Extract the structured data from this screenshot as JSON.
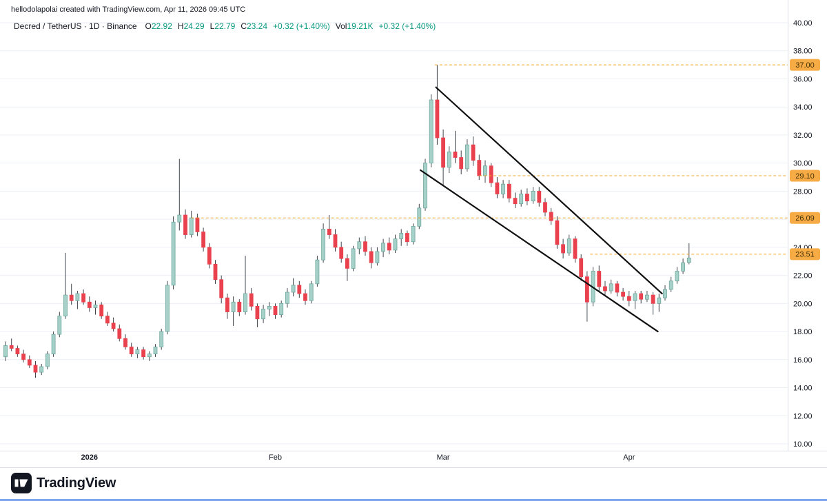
{
  "attribution": "hellodolapolai created with TradingView.com, Apr 11, 2026 09:45 UTC",
  "legend": {
    "title": "Decred / TetherUS · 1D · Binance",
    "ohlc": {
      "o_label": "O",
      "o": "22.92",
      "h_label": "H",
      "h": "24.29",
      "l_label": "L",
      "l": "22.79",
      "c_label": "C",
      "c": "23.24"
    },
    "change": "+0.32 (+1.40%)",
    "vol_label": "Vol",
    "vol_value": "19.21K",
    "vol_change": "+0.32 (+1.40%)"
  },
  "footer": {
    "brand": "TradingView"
  },
  "chart_data": {
    "type": "candlestick",
    "title": "Decred / TetherUS · 1D · Binance",
    "y_axis": {
      "min": 10,
      "max": 40,
      "step": 2,
      "side": "right",
      "labels": [
        "40.00",
        "38.00",
        "36.00",
        "34.00",
        "32.00",
        "30.00",
        "28.00",
        "26.00",
        "24.00",
        "22.00",
        "20.00",
        "18.00",
        "16.00",
        "14.00",
        "12.00",
        "10.00"
      ]
    },
    "x_axis": {
      "labels": [
        {
          "text": "2026",
          "index": 14,
          "bold": true
        },
        {
          "text": "Feb",
          "index": 45,
          "bold": false
        },
        {
          "text": "Mar",
          "index": 73,
          "bold": false
        },
        {
          "text": "Apr",
          "index": 104,
          "bold": false
        }
      ]
    },
    "price_levels": [
      {
        "label": "37.00",
        "price": 37.0,
        "start_index": 71.6
      },
      {
        "label": "29.10",
        "price": 29.1,
        "start_index": 79
      },
      {
        "label": "26.09",
        "price": 26.09,
        "start_index": 31
      },
      {
        "label": "23.51",
        "price": 23.51,
        "start_index": 97.5
      }
    ],
    "trendlines": [
      {
        "from_index": 71.8,
        "from_price": 35.4,
        "to_index": 109.5,
        "to_price": 20.7
      },
      {
        "from_index": 69.2,
        "from_price": 29.5,
        "to_index": 108.8,
        "to_price": 18.0
      }
    ],
    "colors": {
      "up_fill": "#a5d1c9",
      "up_border": "#6fa69d",
      "down_fill": "#e9414e",
      "down_border": "#e9414e",
      "wick": "#3f444c",
      "grid": "#eceff4",
      "axis_border": "#dde0e6",
      "axis_text": "#131722",
      "trendline": "#101010",
      "level_line": "#f5a623",
      "level_label_bg": "#f6ab44",
      "level_label_text": "#422f05"
    },
    "candles": [
      [
        "2025-12-18",
        16.2,
        17.3,
        15.9,
        17.0
      ],
      [
        "2025-12-19",
        17.0,
        17.5,
        16.6,
        16.8
      ],
      [
        "2025-12-20",
        16.8,
        17.0,
        16.2,
        16.4
      ],
      [
        "2025-12-21",
        16.4,
        16.7,
        15.8,
        16.0
      ],
      [
        "2025-12-22",
        16.0,
        16.3,
        15.4,
        15.6
      ],
      [
        "2025-12-23",
        15.6,
        15.9,
        14.7,
        15.1
      ],
      [
        "2025-12-24",
        15.1,
        15.7,
        14.9,
        15.5
      ],
      [
        "2025-12-25",
        15.5,
        16.6,
        15.3,
        16.4
      ],
      [
        "2025-12-26",
        16.4,
        18.0,
        16.2,
        17.8
      ],
      [
        "2025-12-27",
        17.8,
        19.4,
        17.6,
        19.1
      ],
      [
        "2025-12-28",
        19.1,
        23.6,
        18.9,
        20.6
      ],
      [
        "2025-12-29",
        20.6,
        21.4,
        19.9,
        20.2
      ],
      [
        "2025-12-30",
        20.2,
        20.9,
        19.6,
        20.7
      ],
      [
        "2025-12-31",
        20.7,
        21.0,
        19.9,
        20.1
      ],
      [
        "2026-01-01",
        20.1,
        20.5,
        19.4,
        19.7
      ],
      [
        "2026-01-02",
        19.7,
        20.2,
        19.2,
        19.9
      ],
      [
        "2026-01-03",
        19.9,
        20.1,
        18.9,
        19.1
      ],
      [
        "2026-01-04",
        19.1,
        19.4,
        18.4,
        18.6
      ],
      [
        "2026-01-05",
        18.6,
        19.0,
        18.0,
        18.2
      ],
      [
        "2026-01-06",
        18.2,
        18.5,
        17.3,
        17.5
      ],
      [
        "2026-01-07",
        17.5,
        17.8,
        16.7,
        16.9
      ],
      [
        "2026-01-08",
        16.9,
        17.2,
        16.2,
        16.4
      ],
      [
        "2026-01-09",
        16.4,
        16.9,
        16.1,
        16.7
      ],
      [
        "2026-01-10",
        16.7,
        16.9,
        16.0,
        16.2
      ],
      [
        "2026-01-11",
        16.2,
        16.6,
        15.9,
        16.4
      ],
      [
        "2026-01-12",
        16.4,
        17.1,
        16.2,
        16.9
      ],
      [
        "2026-01-13",
        16.9,
        18.2,
        16.7,
        18.0
      ],
      [
        "2026-01-14",
        18.0,
        21.6,
        17.8,
        21.3
      ],
      [
        "2026-01-15",
        21.3,
        26.2,
        21.0,
        25.8
      ],
      [
        "2026-01-16",
        25.8,
        30.3,
        25.2,
        26.3
      ],
      [
        "2026-01-17",
        26.3,
        26.7,
        24.6,
        24.9
      ],
      [
        "2026-01-18",
        24.9,
        26.6,
        24.7,
        26.1
      ],
      [
        "2026-01-19",
        26.1,
        26.4,
        24.8,
        25.1
      ],
      [
        "2026-01-20",
        25.1,
        25.4,
        23.7,
        24.0
      ],
      [
        "2026-01-21",
        24.0,
        24.3,
        22.5,
        22.8
      ],
      [
        "2026-01-22",
        22.8,
        23.1,
        21.4,
        21.7
      ],
      [
        "2026-01-23",
        21.7,
        22.0,
        20.0,
        20.4
      ],
      [
        "2026-01-24",
        20.4,
        20.7,
        18.9,
        19.4
      ],
      [
        "2026-01-25",
        19.4,
        20.5,
        18.4,
        20.1
      ],
      [
        "2026-01-26",
        20.1,
        20.3,
        19.1,
        19.4
      ],
      [
        "2026-01-27",
        19.4,
        23.4,
        19.2,
        20.7
      ],
      [
        "2026-01-28",
        20.7,
        21.1,
        19.5,
        19.8
      ],
      [
        "2026-01-29",
        19.8,
        20.0,
        18.3,
        18.9
      ],
      [
        "2026-01-30",
        18.9,
        19.9,
        18.6,
        19.6
      ],
      [
        "2026-01-31",
        19.6,
        20.1,
        19.1,
        19.8
      ],
      [
        "2026-02-01",
        19.8,
        20.0,
        18.9,
        19.2
      ],
      [
        "2026-02-02",
        19.2,
        20.2,
        19.0,
        20.0
      ],
      [
        "2026-02-03",
        20.0,
        21.1,
        19.7,
        20.8
      ],
      [
        "2026-02-04",
        20.8,
        21.8,
        20.5,
        21.3
      ],
      [
        "2026-02-05",
        21.3,
        21.6,
        20.4,
        20.7
      ],
      [
        "2026-02-06",
        20.7,
        21.0,
        19.9,
        20.2
      ],
      [
        "2026-02-07",
        20.2,
        21.6,
        20.0,
        21.4
      ],
      [
        "2026-02-08",
        21.4,
        23.4,
        21.2,
        23.1
      ],
      [
        "2026-02-09",
        23.1,
        25.7,
        22.9,
        25.3
      ],
      [
        "2026-02-10",
        25.3,
        26.3,
        24.6,
        24.9
      ],
      [
        "2026-02-11",
        24.9,
        25.3,
        23.7,
        24.0
      ],
      [
        "2026-02-12",
        24.0,
        24.4,
        22.9,
        23.2
      ],
      [
        "2026-02-13",
        23.2,
        23.5,
        21.6,
        22.5
      ],
      [
        "2026-02-14",
        22.5,
        24.1,
        22.3,
        23.9
      ],
      [
        "2026-02-15",
        23.9,
        24.7,
        23.5,
        24.4
      ],
      [
        "2026-02-16",
        24.4,
        24.8,
        23.4,
        23.7
      ],
      [
        "2026-02-17",
        23.7,
        24.0,
        22.5,
        22.9
      ],
      [
        "2026-02-18",
        22.9,
        24.0,
        22.7,
        23.7
      ],
      [
        "2026-02-19",
        23.7,
        24.6,
        23.3,
        24.3
      ],
      [
        "2026-02-20",
        24.3,
        24.7,
        23.5,
        23.8
      ],
      [
        "2026-02-21",
        23.8,
        24.9,
        23.6,
        24.6
      ],
      [
        "2026-02-22",
        24.6,
        25.3,
        24.1,
        25.0
      ],
      [
        "2026-02-23",
        25.0,
        25.2,
        24.1,
        24.4
      ],
      [
        "2026-02-24",
        24.4,
        25.7,
        24.2,
        25.5
      ],
      [
        "2026-02-25",
        25.5,
        27.1,
        25.3,
        26.8
      ],
      [
        "2026-02-26",
        26.8,
        30.3,
        26.6,
        30.0
      ],
      [
        "2026-02-27",
        30.0,
        34.9,
        29.7,
        34.5
      ],
      [
        "2026-02-28",
        34.5,
        37.0,
        31.3,
        31.8
      ],
      [
        "2026-03-01",
        31.8,
        32.4,
        28.4,
        29.7
      ],
      [
        "2026-03-02",
        29.7,
        31.2,
        29.3,
        30.8
      ],
      [
        "2026-03-03",
        30.8,
        32.3,
        30.0,
        30.4
      ],
      [
        "2026-03-04",
        30.4,
        30.9,
        29.2,
        29.6
      ],
      [
        "2026-03-05",
        29.6,
        31.7,
        29.4,
        31.3
      ],
      [
        "2026-03-06",
        31.3,
        31.9,
        29.8,
        30.2
      ],
      [
        "2026-03-07",
        30.2,
        30.6,
        28.8,
        29.1
      ],
      [
        "2026-03-08",
        29.1,
        30.2,
        28.6,
        29.8
      ],
      [
        "2026-03-09",
        29.8,
        30.0,
        28.3,
        28.6
      ],
      [
        "2026-03-10",
        28.6,
        29.0,
        27.5,
        27.8
      ],
      [
        "2026-03-11",
        27.8,
        28.8,
        27.5,
        28.5
      ],
      [
        "2026-03-12",
        28.5,
        28.8,
        27.2,
        27.5
      ],
      [
        "2026-03-13",
        27.5,
        27.9,
        26.8,
        27.1
      ],
      [
        "2026-03-14",
        27.1,
        28.1,
        26.9,
        27.8
      ],
      [
        "2026-03-15",
        27.8,
        28.2,
        27.0,
        27.3
      ],
      [
        "2026-03-16",
        27.3,
        28.3,
        27.1,
        28.0
      ],
      [
        "2026-03-17",
        28.0,
        28.3,
        26.9,
        27.2
      ],
      [
        "2026-03-18",
        27.2,
        27.5,
        26.2,
        26.5
      ],
      [
        "2026-03-19",
        26.5,
        26.8,
        25.6,
        25.9
      ],
      [
        "2026-03-20",
        25.9,
        26.2,
        23.9,
        24.2
      ],
      [
        "2026-03-21",
        24.2,
        24.6,
        23.2,
        23.6
      ],
      [
        "2026-03-22",
        23.6,
        24.9,
        23.4,
        24.6
      ],
      [
        "2026-03-23",
        24.6,
        24.8,
        22.9,
        23.2
      ],
      [
        "2026-03-24",
        23.2,
        23.5,
        21.6,
        21.9
      ],
      [
        "2026-03-25",
        21.9,
        22.3,
        18.7,
        20.1
      ],
      [
        "2026-03-26",
        20.1,
        22.6,
        19.8,
        22.3
      ],
      [
        "2026-03-27",
        22.3,
        22.7,
        20.9,
        21.2
      ],
      [
        "2026-03-28",
        21.2,
        21.6,
        20.6,
        20.9
      ],
      [
        "2026-03-29",
        20.9,
        21.7,
        20.7,
        21.4
      ],
      [
        "2026-03-30",
        21.4,
        21.6,
        20.5,
        20.8
      ],
      [
        "2026-03-31",
        20.8,
        21.1,
        20.2,
        20.5
      ],
      [
        "2026-04-01",
        20.5,
        20.9,
        19.8,
        20.2
      ],
      [
        "2026-04-02",
        20.2,
        20.9,
        19.6,
        20.7
      ],
      [
        "2026-04-03",
        20.7,
        20.9,
        20.0,
        20.3
      ],
      [
        "2026-04-04",
        20.3,
        20.9,
        20.1,
        20.6
      ],
      [
        "2026-04-05",
        20.6,
        20.8,
        19.2,
        20.0
      ],
      [
        "2026-04-06",
        20.0,
        20.7,
        19.4,
        20.4
      ],
      [
        "2026-04-07",
        20.4,
        21.3,
        20.2,
        21.0
      ],
      [
        "2026-04-08",
        21.0,
        21.9,
        20.8,
        21.6
      ],
      [
        "2026-04-09",
        21.6,
        22.6,
        21.4,
        22.3
      ],
      [
        "2026-04-10",
        22.3,
        23.2,
        22.1,
        22.9
      ],
      [
        "2026-04-11",
        22.92,
        24.29,
        22.79,
        23.24
      ]
    ]
  }
}
